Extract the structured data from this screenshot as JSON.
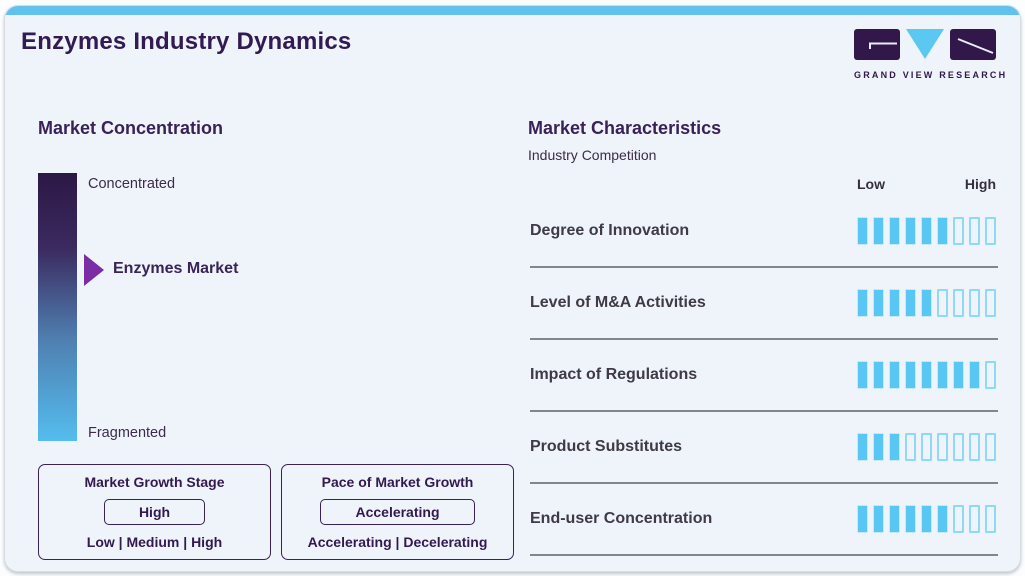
{
  "header": {
    "title": "Enzymes Industry Dynamics"
  },
  "logo": {
    "caption": "GRAND VIEW RESEARCH",
    "dark_color": "#32174b",
    "blue_color": "#5ac8f0"
  },
  "colors": {
    "accent_blue": "#61c2ee",
    "heading_purple": "#3a2158",
    "bar_fill_blue": "#58c7f3",
    "gradient_top": "#2c1845",
    "gradient_bottom": "#54bdee",
    "arrow_purple": "#7b2da6"
  },
  "concentration": {
    "title": "Market Concentration",
    "top_label": "Concentrated",
    "bottom_label": "Fragmented",
    "pointer_label": "Enzymes Market",
    "growth_stage": {
      "title": "Market Growth Stage",
      "value": "High",
      "options": "Low | Medium | High"
    },
    "pace": {
      "title": "Pace of Market Growth",
      "value": "Accelerating",
      "options": "Accelerating | Decelerating"
    }
  },
  "characteristics": {
    "title": "Market Characteristics",
    "subtitle": "Industry Competition",
    "scale_low": "Low",
    "scale_high": "High",
    "rows": [
      {
        "label": "Degree of Innovation",
        "filled": 6,
        "total": 9
      },
      {
        "label": "Level of M&A Activities",
        "filled": 5,
        "total": 9
      },
      {
        "label": "Impact of Regulations",
        "filled": 8,
        "total": 9
      },
      {
        "label": "Product Substitutes",
        "filled": 3,
        "total": 9
      },
      {
        "label": "End-user Concentration",
        "filled": 6,
        "total": 9
      }
    ]
  },
  "chart_data": [
    {
      "type": "bar",
      "title": "Market Characteristics — Industry Competition",
      "categories": [
        "Degree of Innovation",
        "Level of M&A Activities",
        "Impact of Regulations",
        "Product Substitutes",
        "End-user Concentration"
      ],
      "values": [
        6,
        5,
        8,
        3,
        6
      ],
      "xlabel": "Low to High scale",
      "ylabel": "Filled segments",
      "ylim": [
        0,
        9
      ],
      "legend_position": "none",
      "grid": false
    },
    {
      "type": "scale",
      "title": "Market Concentration",
      "scale_ends": [
        "Concentrated",
        "Fragmented"
      ],
      "marker_label": "Enzymes Market",
      "marker_position_from_concentrated": 0.33
    }
  ]
}
